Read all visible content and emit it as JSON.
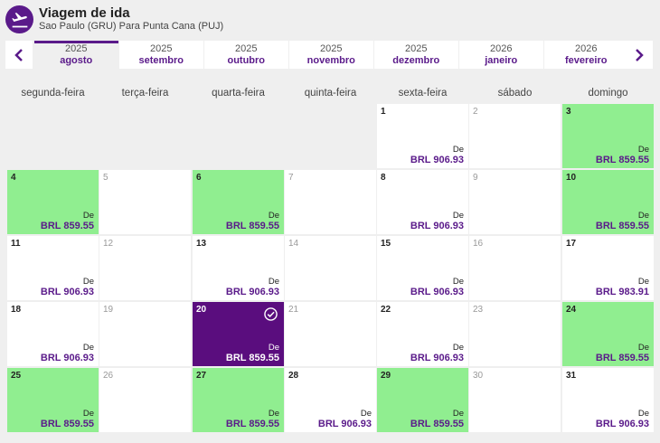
{
  "header": {
    "title": "Viagem de ida",
    "subtitle": "Sao Paulo (GRU) Para Punta Cana (PUJ)"
  },
  "months": [
    {
      "year": "2025",
      "month": "agosto",
      "active": true
    },
    {
      "year": "2025",
      "month": "setembro"
    },
    {
      "year": "2025",
      "month": "outubro"
    },
    {
      "year": "2025",
      "month": "novembro"
    },
    {
      "year": "2025",
      "month": "dezembro"
    },
    {
      "year": "2026",
      "month": "janeiro"
    },
    {
      "year": "2026",
      "month": "fevereiro"
    }
  ],
  "weekdays": [
    "segunda-feira",
    "terça-feira",
    "quarta-feira",
    "quinta-feira",
    "sexta-feira",
    "sábado",
    "domingo"
  ],
  "price_prefix": "De",
  "colors": {
    "brand": "#5a1a8a",
    "cheapest": "#90ee90",
    "selected": "#5a0d7e"
  },
  "days": [
    {
      "day": "1",
      "price": "BRL 906.93"
    },
    {
      "day": "2"
    },
    {
      "day": "3",
      "price": "BRL 859.55",
      "cheap": true
    },
    {
      "day": "4",
      "price": "BRL 859.55",
      "cheap": true
    },
    {
      "day": "5"
    },
    {
      "day": "6",
      "price": "BRL 859.55",
      "cheap": true
    },
    {
      "day": "7"
    },
    {
      "day": "8",
      "price": "BRL 906.93"
    },
    {
      "day": "9"
    },
    {
      "day": "10",
      "price": "BRL 859.55",
      "cheap": true
    },
    {
      "day": "11",
      "price": "BRL 906.93"
    },
    {
      "day": "12"
    },
    {
      "day": "13",
      "price": "BRL 906.93"
    },
    {
      "day": "14"
    },
    {
      "day": "15",
      "price": "BRL 906.93"
    },
    {
      "day": "16"
    },
    {
      "day": "17",
      "price": "BRL 983.91"
    },
    {
      "day": "18",
      "price": "BRL 906.93"
    },
    {
      "day": "19"
    },
    {
      "day": "20",
      "price": "BRL 859.55",
      "selected": true
    },
    {
      "day": "21"
    },
    {
      "day": "22",
      "price": "BRL 906.93"
    },
    {
      "day": "23"
    },
    {
      "day": "24",
      "price": "BRL 859.55",
      "cheap": true
    },
    {
      "day": "25",
      "price": "BRL 859.55",
      "cheap": true
    },
    {
      "day": "26"
    },
    {
      "day": "27",
      "price": "BRL 859.55",
      "cheap": true
    },
    {
      "day": "28",
      "price": "BRL 906.93"
    },
    {
      "day": "29",
      "price": "BRL 859.55",
      "cheap": true
    },
    {
      "day": "30"
    },
    {
      "day": "31",
      "price": "BRL 906.93"
    }
  ]
}
